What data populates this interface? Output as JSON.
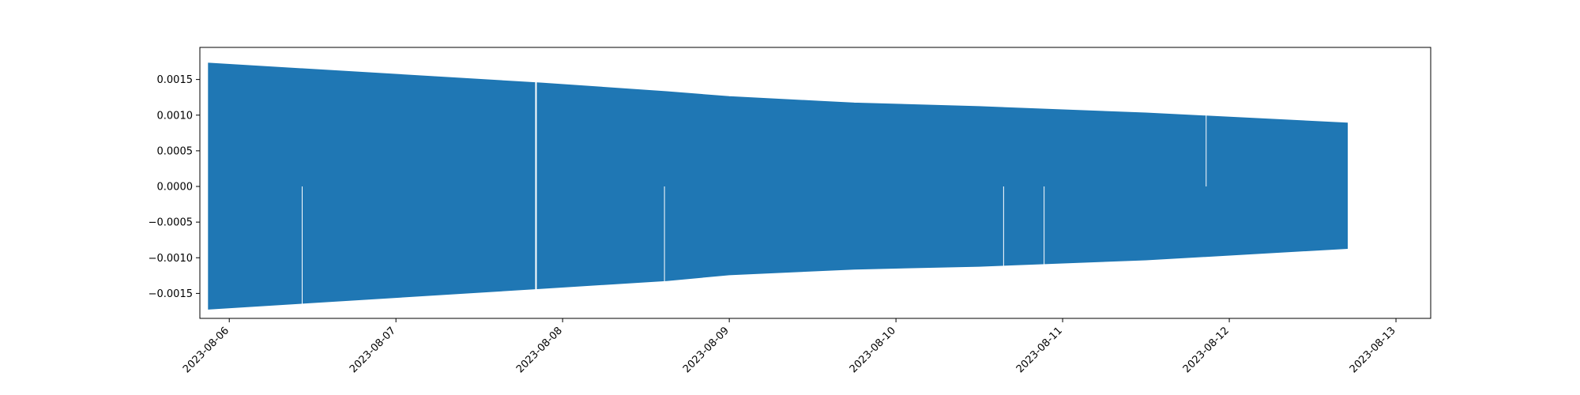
{
  "chart_data": {
    "type": "area",
    "title": "",
    "xlabel": "",
    "ylabel": "",
    "x_axis_type": "date",
    "xlim": [
      "2023-08-05T19:46",
      "2023-08-13T05:00"
    ],
    "ylim": [
      -0.00185,
      0.00195
    ],
    "x_ticks": [
      "2023-08-06",
      "2023-08-07",
      "2023-08-08",
      "2023-08-09",
      "2023-08-10",
      "2023-08-11",
      "2023-08-12",
      "2023-08-13"
    ],
    "y_ticks": [
      -0.0015,
      -0.001,
      -0.0005,
      0.0,
      0.0005,
      0.001,
      0.0015
    ],
    "y_tick_labels": [
      "−0.0015",
      "−0.0010",
      "−0.0005",
      "0.0000",
      "0.0005",
      "0.0010",
      "0.0015"
    ],
    "grid": false,
    "series": [
      {
        "color": "#1f77b4",
        "envelope_upper": [
          {
            "x": "2023-08-05T21:00",
            "y": 0.00173
          },
          {
            "x": "2023-08-07T21:00",
            "y": 0.00145
          },
          {
            "x": "2023-08-08T15:00",
            "y": 0.00133
          },
          {
            "x": "2023-08-09T00:00",
            "y": 0.00126
          },
          {
            "x": "2023-08-09T18:00",
            "y": 0.00117
          },
          {
            "x": "2023-08-10T12:00",
            "y": 0.00112
          },
          {
            "x": "2023-08-11T12:00",
            "y": 0.00103
          },
          {
            "x": "2023-08-12T17:00",
            "y": 0.00089
          }
        ],
        "envelope_lower": [
          {
            "x": "2023-08-05T21:00",
            "y": -0.00172
          },
          {
            "x": "2023-08-07T21:00",
            "y": -0.00143
          },
          {
            "x": "2023-08-08T15:00",
            "y": -0.00132
          },
          {
            "x": "2023-08-09T00:00",
            "y": -0.00124
          },
          {
            "x": "2023-08-09T18:00",
            "y": -0.00116
          },
          {
            "x": "2023-08-10T12:00",
            "y": -0.00112
          },
          {
            "x": "2023-08-11T12:00",
            "y": -0.00103
          },
          {
            "x": "2023-08-12T17:00",
            "y": -0.00087
          }
        ],
        "gaps": [
          {
            "x": "2023-08-06T10:30",
            "half": "lower"
          },
          {
            "x": "2023-08-07T20:10",
            "half": "both"
          },
          {
            "x": "2023-08-08T14:40",
            "half": "lower"
          },
          {
            "x": "2023-08-10T15:30",
            "half": "lower"
          },
          {
            "x": "2023-08-10T21:20",
            "half": "lower"
          },
          {
            "x": "2023-08-11T20:40",
            "half": "upper"
          }
        ]
      }
    ]
  }
}
